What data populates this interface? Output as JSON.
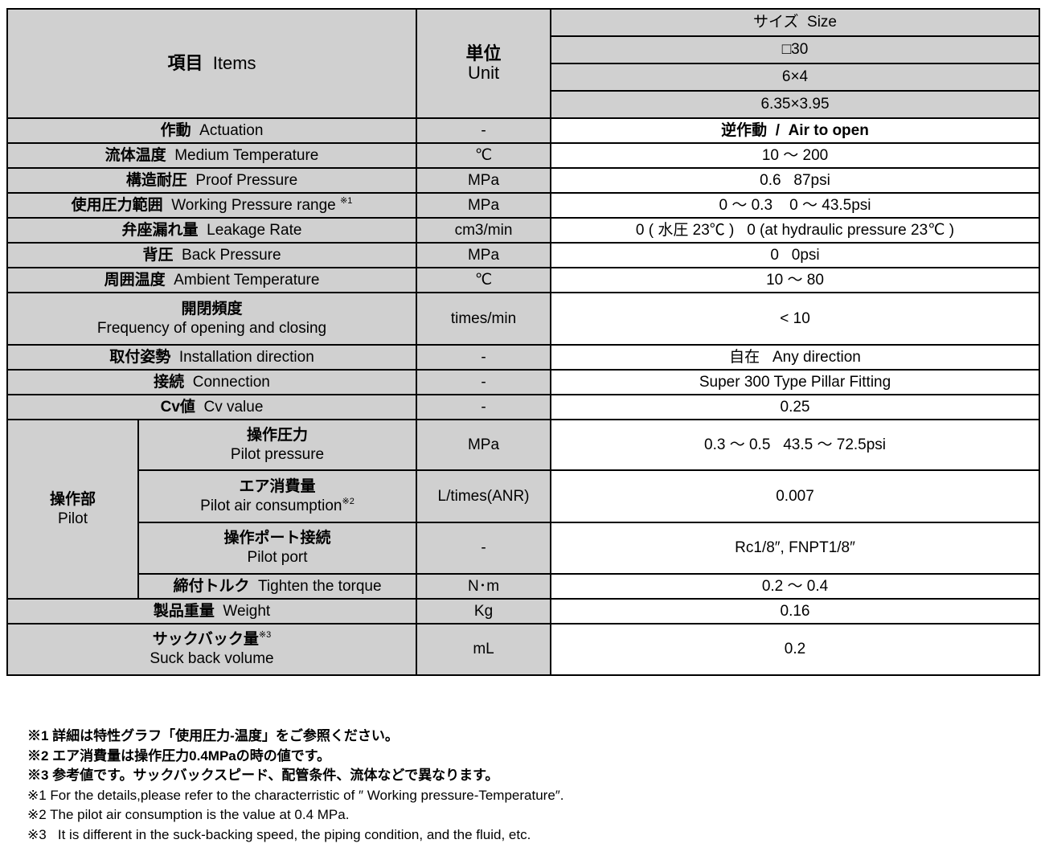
{
  "header": {
    "items_jp": "項目",
    "items_en": "Items",
    "unit_jp": "単位",
    "unit_en": "Unit",
    "size_label": "サイズ  Size",
    "size_values": [
      "□30",
      "6×4",
      "6.35×3.95"
    ]
  },
  "rows": [
    {
      "jp": "作動",
      "en": "Actuation",
      "unit": "-",
      "value": "逆作動  /  Air to open"
    },
    {
      "jp": "流体温度",
      "en": "Medium Temperature",
      "unit": "℃",
      "value": "10 ～ 200"
    },
    {
      "jp": "構造耐圧",
      "en": "Proof Pressure",
      "unit": "MPa",
      "value": "0.6   87psi"
    },
    {
      "jp": "使用圧力範囲",
      "en": "Working Pressure range",
      "note": "※1",
      "unit": "MPa",
      "value": "0 ～ 0.3    0 ～ 43.5psi"
    },
    {
      "jp": "弁座漏れ量",
      "en": "Leakage Rate",
      "unit": "cm3/min",
      "value": "0 ( 水圧 23℃ )   0 (at hydraulic pressure 23℃ )"
    },
    {
      "jp": "背圧",
      "en": "Back Pressure",
      "unit": "MPa",
      "value": "0   0psi"
    },
    {
      "jp": "周囲温度",
      "en": "Ambient Temperature",
      "unit": "℃",
      "value": "10 ～ 80"
    },
    {
      "jp": "開閉頻度",
      "en": "Frequency of opening and closing",
      "unit": "times/min",
      "value": "< 10"
    },
    {
      "jp": "取付姿勢",
      "en": "Installation direction",
      "unit": "-",
      "value": "自在   Any direction"
    },
    {
      "jp": "接続",
      "en": "Connection",
      "unit": "-",
      "value": "Super 300 Type Pillar Fitting"
    },
    {
      "jp": "Cv値",
      "en": "Cv value",
      "unit": "-",
      "value": "0.25"
    }
  ],
  "pilot": {
    "jp": "操作部",
    "en": "Pilot",
    "rows": [
      {
        "jp": "操作圧力",
        "en": "Pilot pressure",
        "unit": "MPa",
        "value": "0.3 ～ 0.5   43.5 ～ 72.5psi"
      },
      {
        "jp": "エア消費量",
        "en": "Pilot air consumption",
        "note": "※2",
        "unit": "L/times(ANR)",
        "value": "0.007"
      },
      {
        "jp": "操作ポート接続",
        "en": "Pilot port",
        "unit": "-",
        "value": "Rc1/8″, FNPT1/8″"
      },
      {
        "jp": "締付トルク",
        "en": "Tighten the torque",
        "unit": "N･m",
        "value": "0.2 ～ 0.4"
      }
    ]
  },
  "tail_rows": [
    {
      "jp": "製品重量",
      "en": "Weight",
      "unit": "Kg",
      "value": "0.16"
    },
    {
      "jp": "サックバック量",
      "note": "※3",
      "en": "Suck back volume",
      "unit": "mL",
      "value": "0.2"
    }
  ],
  "notes": [
    "※1 詳細は特性グラフ「使用圧力-温度」をご参照ください。",
    "※2 エア消費量は操作圧力0.4MPaの時の値です。",
    "※3 参考値です。サックバックスピード、配管条件、流体などで異なります。",
    "※1 For the details,please refer to the characterristic of ″ Working pressure-Temperature″.",
    "※2 The pilot air consumption is the value at 0.4 MPa.",
    "※3   It is different in the suck-backing speed, the piping condition, and the fluid, etc."
  ]
}
